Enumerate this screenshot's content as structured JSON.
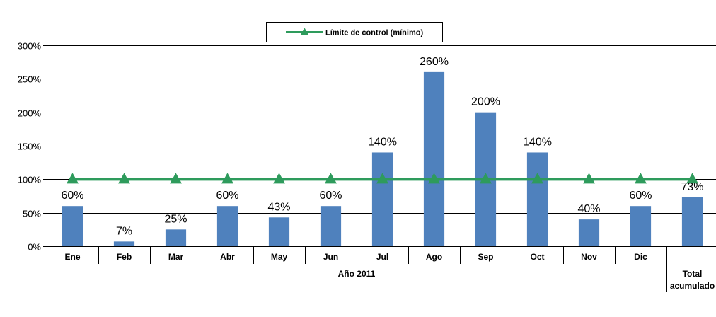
{
  "chart_data": {
    "type": "bar",
    "categories": [
      "Ene",
      "Feb",
      "Mar",
      "Abr",
      "May",
      "Jun",
      "Jul",
      "Ago",
      "Sep",
      "Oct",
      "Nov",
      "Dic",
      "Total acumulado"
    ],
    "group_label": "Año 2011",
    "series": [
      {
        "values": [
          60,
          7,
          25,
          60,
          43,
          60,
          140,
          260,
          200,
          140,
          40,
          60,
          73
        ],
        "data_labels": [
          "60%",
          "7%",
          "25%",
          "60%",
          "43%",
          "60%",
          "140%",
          "260%",
          "200%",
          "140%",
          "40%",
          "60%",
          "73%"
        ],
        "color": "#4f81bd"
      },
      {
        "name": "Límite de control (mínimo)",
        "type": "line",
        "marker": "triangle",
        "values": [
          100,
          100,
          100,
          100,
          100,
          100,
          100,
          100,
          100,
          100,
          100,
          100,
          100
        ],
        "color": "#2e9b5c"
      }
    ],
    "ylim": [
      0,
      300
    ],
    "y_ticks": [
      "0%",
      "50%",
      "100%",
      "150%",
      "200%",
      "250%",
      "300%"
    ],
    "grid": true,
    "legend_position": "top"
  }
}
